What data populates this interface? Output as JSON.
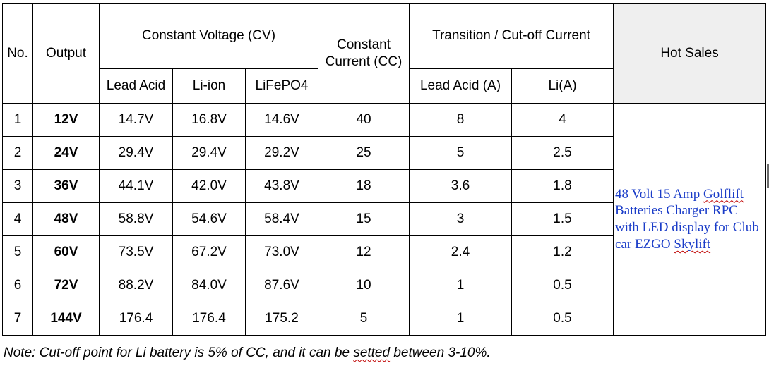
{
  "headers": {
    "no": "No.",
    "output": "Output",
    "cv_group": "Constant Voltage (CV)",
    "cc_line1": "Constant",
    "cc_line2": "Current (CC)",
    "transition_group": "Transition / Cut-off Current",
    "hot_sales": "Hot Sales",
    "lead_acid": "Lead Acid",
    "li_ion": "Li-ion",
    "lifepo4": "LiFePO4",
    "lead_acid_a": "Lead Acid (A)",
    "li_a": "Li(A)"
  },
  "rows": [
    {
      "no": "1",
      "output": "12V",
      "lead_acid": "14.7V",
      "li_ion": "16.8V",
      "lifepo4": "14.6V",
      "cc": "40",
      "t_lead": "8",
      "t_li": "4"
    },
    {
      "no": "2",
      "output": "24V",
      "lead_acid": "29.4V",
      "li_ion": "29.4V",
      "lifepo4": "29.2V",
      "cc": "25",
      "t_lead": "5",
      "t_li": "2.5"
    },
    {
      "no": "3",
      "output": "36V",
      "lead_acid": "44.1V",
      "li_ion": "42.0V",
      "lifepo4": "43.8V",
      "cc": "18",
      "t_lead": "3.6",
      "t_li": "1.8"
    },
    {
      "no": "4",
      "output": "48V",
      "lead_acid": "58.8V",
      "li_ion": "54.6V",
      "lifepo4": "58.4V",
      "cc": "15",
      "t_lead": "3",
      "t_li": "1.5"
    },
    {
      "no": "5",
      "output": "60V",
      "lead_acid": "73.5V",
      "li_ion": "67.2V",
      "lifepo4": "73.0V",
      "cc": "12",
      "t_lead": "2.4",
      "t_li": "1.2"
    },
    {
      "no": "6",
      "output": "72V",
      "lead_acid": "88.2V",
      "li_ion": "84.0V",
      "lifepo4": "87.6V",
      "cc": "10",
      "t_lead": "1",
      "t_li": "0.5"
    },
    {
      "no": "7",
      "output": "144V",
      "lead_acid": "176.4",
      "li_ion": "176.4",
      "lifepo4": "175.2",
      "cc": "5",
      "t_lead": "1",
      "t_li": "0.5"
    }
  ],
  "hot_sales_link": {
    "part1": "48 Volt 15 Amp ",
    "part2": "Golflift",
    "part3": " Batteries Charger RPC with LED display for Club car EZGO ",
    "part4": "Skylift"
  },
  "note": {
    "part1": "Note: Cut-off point for Li battery is 5% of CC, and it can be ",
    "part2": "setted",
    "part3": " between 3-10%."
  },
  "colors": {
    "link": "#1a3cc8",
    "spellcheck": "#c00000",
    "hot_sales_header_bg": "#efefef"
  }
}
